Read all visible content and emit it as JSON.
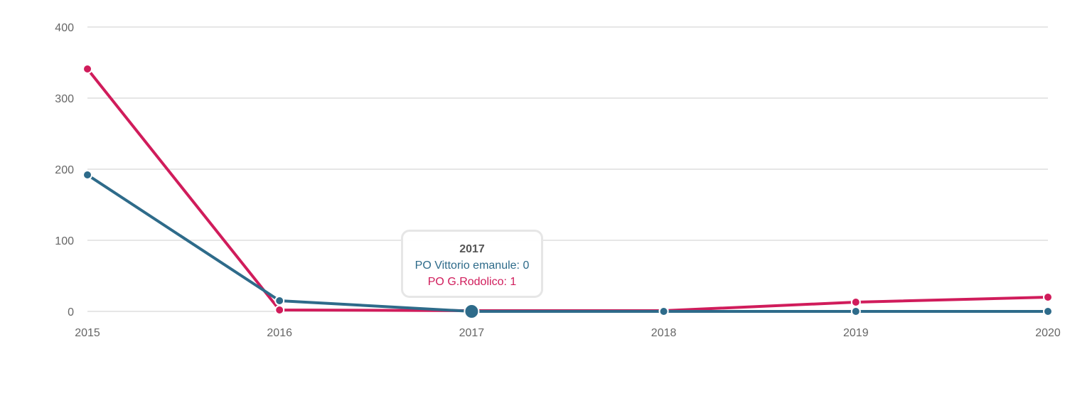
{
  "chart_data": {
    "type": "line",
    "title": "",
    "xlabel": "",
    "ylabel": "",
    "categories": [
      "2015",
      "2016",
      "2017",
      "2018",
      "2019",
      "2020"
    ],
    "yticks": [
      "0",
      "100",
      "200",
      "300",
      "400"
    ],
    "ylim": [
      0,
      400
    ],
    "grid": true,
    "series": [
      {
        "name": "PO Vittorio emanule",
        "color": "#2e6b8a",
        "values": [
          192,
          15,
          0,
          0,
          0,
          0
        ]
      },
      {
        "name": "PO G.Rodolico",
        "color": "#d01c5b",
        "values": [
          341,
          2,
          1,
          1,
          13,
          20
        ]
      }
    ]
  },
  "tooltip": {
    "category": "2017",
    "line1_label": "PO Vittorio emanule: 0",
    "line2_label": "PO G.Rodolico: 1",
    "line1_color": "#2e6b8a",
    "line2_color": "#d01c5b",
    "hover_index": 2
  }
}
